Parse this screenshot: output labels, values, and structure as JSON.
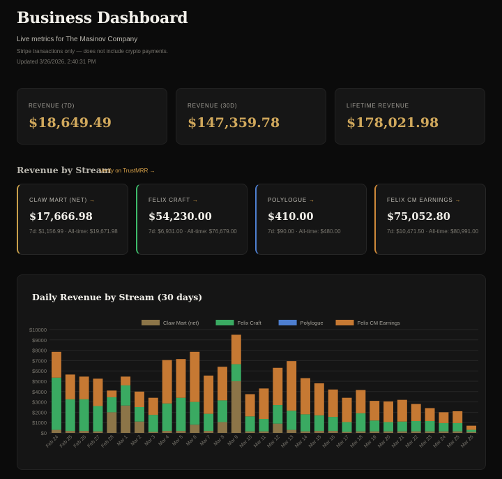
{
  "header": {
    "title": "Business Dashboard",
    "subtitle": "Live metrics for The Masinov Company",
    "note": "Stripe transactions only — does not include crypto payments.",
    "updated": "Updated 3/26/2026, 2:40:31 PM"
  },
  "kpis": [
    {
      "label": "REVENUE (7D)",
      "value": "$18,649.49"
    },
    {
      "label": "REVENUE (30D)",
      "value": "$147,359.78"
    },
    {
      "label": "LIFETIME REVENUE",
      "value": "$178,021.98"
    }
  ],
  "streams_section": {
    "title": "Revenue by Stream",
    "verify_link": "Verify on TrustMRR →"
  },
  "streams": [
    {
      "label": "CLAW MART (NET)",
      "arrow": "→",
      "value": "$17,666.98",
      "meta": "7d: $1,156.99 · All-time: $19,671.98",
      "color": "#c9a04a"
    },
    {
      "label": "FELIX CRAFT",
      "arrow": "→",
      "value": "$54,230.00",
      "meta": "7d: $6,931.00 · All-time: $76,679.00",
      "color": "#3dbb6a"
    },
    {
      "label": "POLYLOGUE",
      "arrow": "→",
      "value": "$410.00",
      "meta": "7d: $90.00 · All-time: $480.00",
      "color": "#4e7fd0"
    },
    {
      "label": "FELIX CM EARNINGS",
      "arrow": "→",
      "value": "$75,052.80",
      "meta": "7d: $10,471.50 · All-time: $80,991.00",
      "color": "#cf8a3a"
    }
  ],
  "chart_title": "Daily Revenue by Stream (30 days)",
  "chart_data": {
    "type": "bar",
    "stacked": true,
    "legend_position": "top-center",
    "grid": true,
    "ylim": [
      0,
      10000
    ],
    "yticks": [
      "$0",
      "$1000",
      "$2000",
      "$3000",
      "$4000",
      "$5000",
      "$6000",
      "$7000",
      "$8000",
      "$9000",
      "$10000"
    ],
    "categories": [
      "Feb 24",
      "Feb 25",
      "Feb 26",
      "Feb 27",
      "Feb 28",
      "Mar 1",
      "Mar 2",
      "Mar 3",
      "Mar 4",
      "Mar 5",
      "Mar 6",
      "Mar 7",
      "Mar 8",
      "Mar 9",
      "Mar 10",
      "Mar 11",
      "Mar 12",
      "Mar 13",
      "Mar 14",
      "Mar 15",
      "Mar 16",
      "Mar 17",
      "Mar 18",
      "Mar 19",
      "Mar 20",
      "Mar 21",
      "Mar 22",
      "Mar 23",
      "Mar 24",
      "Mar 25",
      "Mar 26"
    ],
    "series": [
      {
        "name": "Claw Mart (net)",
        "color": "#8c7548",
        "values": [
          300,
          200,
          200,
          150,
          2000,
          2650,
          1100,
          100,
          200,
          200,
          800,
          200,
          1050,
          5000,
          150,
          150,
          900,
          300,
          150,
          200,
          200,
          100,
          150,
          150,
          150,
          150,
          150,
          150,
          150,
          150,
          100
        ]
      },
      {
        "name": "Felix Craft",
        "color": "#3aaa62",
        "values": [
          5050,
          3050,
          3050,
          2450,
          1450,
          1950,
          1400,
          1650,
          2650,
          3200,
          2200,
          1650,
          2100,
          1650,
          1450,
          1200,
          1800,
          1850,
          1650,
          1500,
          1350,
          950,
          1750,
          1050,
          900,
          950,
          1000,
          1000,
          800,
          800,
          200
        ]
      },
      {
        "name": "Polylogue",
        "color": "#4e7fd0",
        "values": [
          0,
          0,
          0,
          0,
          0,
          0,
          0,
          0,
          0,
          0,
          0,
          0,
          0,
          0,
          0,
          0,
          0,
          0,
          0,
          0,
          0,
          0,
          0,
          0,
          0,
          0,
          0,
          0,
          0,
          0,
          0
        ]
      },
      {
        "name": "Felix CM Earnings",
        "color": "#c67933",
        "values": [
          2500,
          2400,
          2200,
          2650,
          650,
          850,
          1500,
          1650,
          4200,
          3750,
          4850,
          3700,
          3250,
          2850,
          2150,
          2950,
          3600,
          4800,
          3500,
          3100,
          2650,
          2350,
          2250,
          1900,
          2000,
          2100,
          1650,
          1250,
          1050,
          1150,
          400
        ]
      }
    ]
  }
}
